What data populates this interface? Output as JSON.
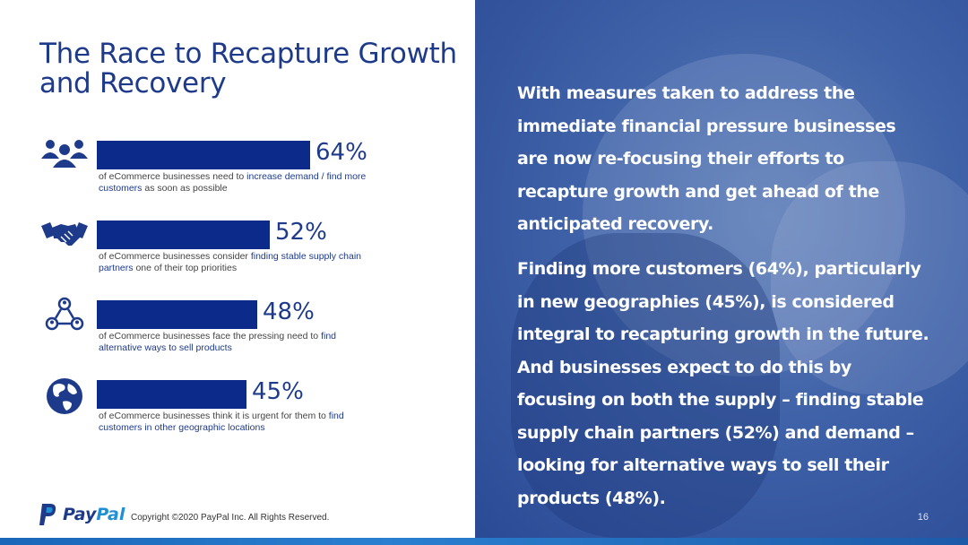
{
  "title": "The Race to Recapture Growth and Recovery",
  "stats": [
    {
      "percent": "64%",
      "value": 64,
      "icon": "people-group-icon",
      "desc_prefix": "of eCommerce businesses need to ",
      "desc_highlight": "increase demand / find more customers",
      "desc_suffix": " as soon as possible"
    },
    {
      "percent": "52%",
      "value": 52,
      "icon": "handshake-icon",
      "desc_prefix": "of eCommerce businesses consider ",
      "desc_highlight": "finding stable supply chain partners",
      "desc_suffix": " one of their top priorities"
    },
    {
      "percent": "48%",
      "value": 48,
      "icon": "network-people-icon",
      "desc_prefix": "of eCommerce businesses face the pressing need to ",
      "desc_highlight": "find alternative ways to sell products",
      "desc_suffix": ""
    },
    {
      "percent": "45%",
      "value": 45,
      "icon": "globe-icon",
      "desc_prefix": "of eCommerce businesses think it is urgent for them to ",
      "desc_highlight": "find customers in other geographic locations",
      "desc_suffix": ""
    }
  ],
  "paragraph1": "With measures taken to address the immediate financial pressure businesses are now re-focusing their efforts to recapture growth and get ahead of the anticipated recovery.",
  "paragraph2": "Finding more customers (64%), particularly in new geographies (45%), is considered integral to recapturing growth in the future. And businesses expect to do this by focusing on both the supply – finding stable supply chain partners (52%) and demand – looking for alternative ways to sell their products (48%).",
  "footer": {
    "logo_pay": "Pay",
    "logo_pal": "Pal",
    "copyright": "Copyright ©2020 PayPal Inc. All Rights Reserved.",
    "page_number": "16"
  },
  "colors": {
    "brand_navy": "#1e3a8a",
    "bar": "#0b2a8a",
    "brand_blue": "#1f8fd6"
  }
}
